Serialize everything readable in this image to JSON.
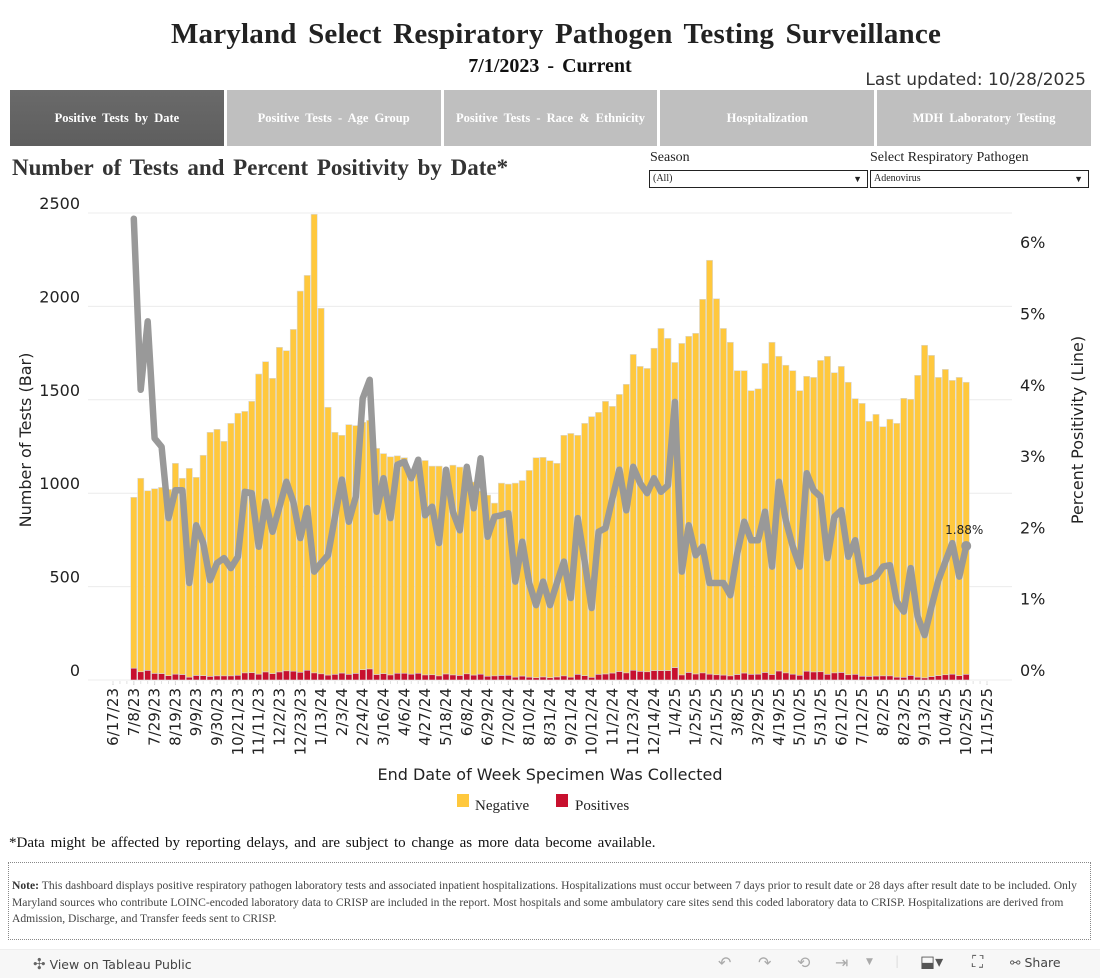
{
  "header": {
    "title": "Maryland Select Respiratory Pathogen Testing Surveillance",
    "subtitle": "7/1/2023 - Current",
    "last_updated": "Last updated: 10/28/2025"
  },
  "tabs": [
    {
      "label": "Positive Tests by Date",
      "active": true
    },
    {
      "label": "Positive Tests - Age Group",
      "active": false
    },
    {
      "label": "Positive Tests - Race & Ethnicity",
      "active": false
    },
    {
      "label": "Hospitalization",
      "active": false
    },
    {
      "label": "MDH Laboratory Testing",
      "active": false
    }
  ],
  "chart_heading": "Number of Tests and Percent Positivity by Date*",
  "filters": {
    "season": {
      "label": "Season",
      "value": "(All)"
    },
    "pathogen": {
      "label": "Select Respiratory Pathogen",
      "value": "Adenovirus"
    }
  },
  "chart_data": {
    "type": "bar+line",
    "xlabel": "End Date of Week Specimen Was Collected",
    "ylabel": "Number of Tests (Bar)",
    "y2label": "Percent Positivity (Line)",
    "ylim": [
      0,
      2500
    ],
    "y2lim": [
      0,
      6.5
    ],
    "y_ticks": [
      "0",
      "500",
      "1000",
      "1500",
      "2000",
      "2500"
    ],
    "y2_ticks": [
      "0%",
      "1%",
      "2%",
      "3%",
      "4%",
      "5%",
      "6%"
    ],
    "x_range": [
      "6/17/23",
      "11/15/25"
    ],
    "x_ticks": [
      "6/17/23",
      "7/8/23",
      "7/29/23",
      "8/19/23",
      "9/9/23",
      "9/30/23",
      "10/21/23",
      "11/11/23",
      "12/2/23",
      "12/23/23",
      "1/13/24",
      "2/3/24",
      "2/24/24",
      "3/16/24",
      "4/6/24",
      "4/27/24",
      "5/18/24",
      "6/8/24",
      "6/29/24",
      "7/20/24",
      "8/10/24",
      "8/31/24",
      "9/21/24",
      "10/12/24",
      "11/2/24",
      "11/23/24",
      "12/14/24",
      "1/4/25",
      "1/25/25",
      "2/15/25",
      "3/8/25",
      "3/29/25",
      "4/19/25",
      "5/10/25",
      "5/31/25",
      "6/21/25",
      "7/12/25",
      "8/2/25",
      "8/23/25",
      "9/13/25",
      "10/4/25",
      "10/25/25",
      "11/15/25"
    ],
    "grid": true,
    "legend_position": "bottom",
    "colors": {
      "negative": "#FFC83D",
      "positives": "#C8102E",
      "line": "#999999"
    },
    "x": [
      "7/8/23",
      "7/15/23",
      "7/22/23",
      "7/29/23",
      "8/5/23",
      "8/12/23",
      "8/19/23",
      "8/26/23",
      "9/2/23",
      "9/9/23",
      "9/16/23",
      "9/23/23",
      "9/30/23",
      "10/7/23",
      "10/14/23",
      "10/21/23",
      "10/28/23",
      "11/4/23",
      "11/11/23",
      "11/18/23",
      "11/25/23",
      "12/2/23",
      "12/9/23",
      "12/16/23",
      "12/23/23",
      "12/30/23",
      "1/6/24",
      "1/13/24",
      "1/20/24",
      "1/27/24",
      "2/3/24",
      "2/10/24",
      "2/17/24",
      "2/24/24",
      "3/2/24",
      "3/9/24",
      "3/16/24",
      "3/23/24",
      "3/30/24",
      "4/6/24",
      "4/13/24",
      "4/20/24",
      "4/27/24",
      "5/4/24",
      "5/11/24",
      "5/18/24",
      "5/25/24",
      "6/1/24",
      "6/8/24",
      "6/15/24",
      "6/22/24",
      "6/29/24",
      "7/6/24",
      "7/13/24",
      "7/20/24",
      "7/27/24",
      "8/3/24",
      "8/10/24",
      "8/17/24",
      "8/24/24",
      "8/31/24",
      "9/7/24",
      "9/14/24",
      "9/21/24",
      "9/28/24",
      "10/5/24",
      "10/12/24",
      "10/19/24",
      "10/26/24",
      "11/2/24",
      "11/9/24",
      "11/16/24",
      "11/23/24",
      "11/30/24",
      "12/7/24",
      "12/14/24",
      "12/21/24",
      "12/28/24",
      "1/4/25",
      "1/11/25",
      "1/18/25",
      "1/25/25",
      "2/1/25",
      "2/8/25",
      "2/15/25",
      "2/22/25",
      "3/1/25",
      "3/8/25",
      "3/15/25",
      "3/22/25",
      "3/29/25",
      "4/5/25",
      "4/12/25",
      "4/19/25",
      "4/26/25",
      "5/3/25",
      "5/10/25",
      "5/17/25",
      "5/24/25",
      "5/31/25",
      "6/7/25",
      "6/14/25",
      "6/21/25",
      "6/28/25",
      "7/5/25",
      "7/12/25",
      "7/19/25",
      "7/26/25",
      "8/2/25",
      "8/9/25",
      "8/16/25",
      "8/23/25",
      "8/30/25",
      "9/6/25",
      "9/13/25",
      "9/20/25",
      "9/27/25",
      "10/4/25",
      "10/11/25",
      "10/18/25",
      "10/25/25"
    ],
    "series": [
      {
        "name": "Negative",
        "type": "bar",
        "values": [
          915,
          1036,
          962,
          989,
          997,
          997,
          1129,
          1051,
          1118,
          1061,
          1180,
          1307,
          1320,
          1256,
          1352,
          1403,
          1400,
          1453,
          1607,
          1661,
          1581,
          1738,
          1714,
          1830,
          2041,
          2114,
          2455,
          1957,
          1434,
          1296,
          1273,
          1337,
          1327,
          1325,
          1331,
          1211,
          1178,
          1168,
          1164,
          1154,
          1079,
          1144,
          1148,
          1117,
          1123,
          1048,
          1123,
          1116,
          1067,
          1034,
          981,
          970,
          925,
          1030,
          1024,
          1039,
          1047,
          1107,
          1178,
          1176,
          1162,
          1144,
          1288,
          1305,
          1280,
          1351,
          1396,
          1403,
          1460,
          1428,
          1484,
          1545,
          1691,
          1633,
          1624,
          1726,
          1832,
          1779,
          1634,
          1775,
          1800,
          1824,
          2000,
          2216,
          2013,
          1856,
          1786,
          1627,
          1619,
          1519,
          1528,
          1655,
          1779,
          1685,
          1647,
          1625,
          1524,
          1579,
          1577,
          1667,
          1703,
          1607,
          1639,
          1566,
          1476,
          1461,
          1366,
          1401,
          1334,
          1374,
          1359,
          1494,
          1479,
          1616,
          1781,
          1720,
          1597,
          1635,
          1573,
          1597,
          1564
        ]
      },
      {
        "name": "Positives",
        "type": "bar",
        "values": [
          63,
          44,
          51,
          35,
          34,
          23,
          31,
          29,
          15,
          24,
          23,
          19,
          22,
          22,
          22,
          25,
          38,
          39,
          31,
          43,
          34,
          43,
          49,
          47,
          41,
          52,
          38,
          33,
          26,
          30,
          37,
          30,
          35,
          55,
          59,
          29,
          34,
          27,
          36,
          36,
          31,
          36,
          27,
          28,
          22,
          32,
          27,
          24,
          33,
          26,
          31,
          20,
          22,
          24,
          25,
          15,
          21,
          15,
          12,
          16,
          12,
          16,
          22,
          15,
          30,
          23,
          14,
          30,
          32,
          37,
          45,
          38,
          52,
          46,
          44,
          50,
          50,
          50,
          66,
          27,
          40,
          32,
          38,
          31,
          28,
          26,
          22,
          29,
          37,
          30,
          31,
          40,
          29,
          48,
          38,
          31,
          25,
          47,
          43,
          44,
          30,
          38,
          40,
          28,
          30,
          20,
          19,
          21,
          22,
          22,
          15,
          14,
          24,
          15,
          11,
          18,
          23,
          28,
          31,
          23,
          30
        ]
      },
      {
        "name": "Percent Positivity",
        "type": "line",
        "values": [
          6.47,
          4.07,
          5.03,
          3.39,
          3.27,
          2.27,
          2.66,
          2.66,
          1.36,
          2.17,
          1.92,
          1.4,
          1.64,
          1.71,
          1.57,
          1.73,
          2.64,
          2.62,
          1.87,
          2.5,
          2.08,
          2.43,
          2.78,
          2.5,
          1.99,
          2.41,
          1.52,
          1.64,
          1.75,
          2.29,
          2.81,
          2.22,
          2.57,
          3.95,
          4.21,
          2.36,
          2.83,
          2.27,
          3.02,
          3.06,
          2.83,
          3.09,
          2.31,
          2.43,
          1.92,
          2.95,
          2.36,
          2.1,
          2.99,
          2.41,
          3.11,
          2.01,
          2.29,
          2.31,
          2.34,
          1.38,
          1.94,
          1.36,
          1.05,
          1.38,
          1.05,
          1.36,
          1.66,
          1.15,
          2.27,
          1.66,
          1.01,
          2.08,
          2.13,
          2.55,
          2.95,
          2.38,
          2.99,
          2.76,
          2.62,
          2.83,
          2.64,
          2.73,
          3.9,
          1.52,
          2.17,
          1.75,
          1.87,
          1.36,
          1.36,
          1.36,
          1.19,
          1.78,
          2.22,
          1.96,
          1.96,
          2.36,
          1.59,
          2.78,
          2.24,
          1.87,
          1.59,
          2.9,
          2.66,
          2.57,
          1.71,
          2.29,
          2.38,
          1.73,
          1.96,
          1.38,
          1.4,
          1.45,
          1.59,
          1.61,
          1.1,
          0.96,
          1.57,
          0.89,
          0.63,
          1.03,
          1.4,
          1.66,
          1.92,
          1.45,
          1.88
        ]
      }
    ],
    "annotations": [
      {
        "x": "10/25/25",
        "text": "1.88%"
      }
    ],
    "legend": [
      "Negative",
      "Positives"
    ]
  },
  "footnote": "*Data might be affected by reporting delays, and are subject to change as more data become available.",
  "note": {
    "label": "Note:",
    "text": "This dashboard displays positive respiratory pathogen laboratory tests and associated inpatient hospitalizations. Hospitalizations must occur between 7 days prior to result date or 28 days after result date to be included. Only Maryland sources who contribute LOINC-encoded laboratory data to CRISP are included in the report. Most hospitals and some ambulatory care sites send this coded laboratory data to CRISP. Hospitalizations are derived from Admission, Discharge, and Transfer feeds sent to CRISP."
  },
  "footer": {
    "view_on": "View on Tableau Public",
    "share": "Share"
  }
}
